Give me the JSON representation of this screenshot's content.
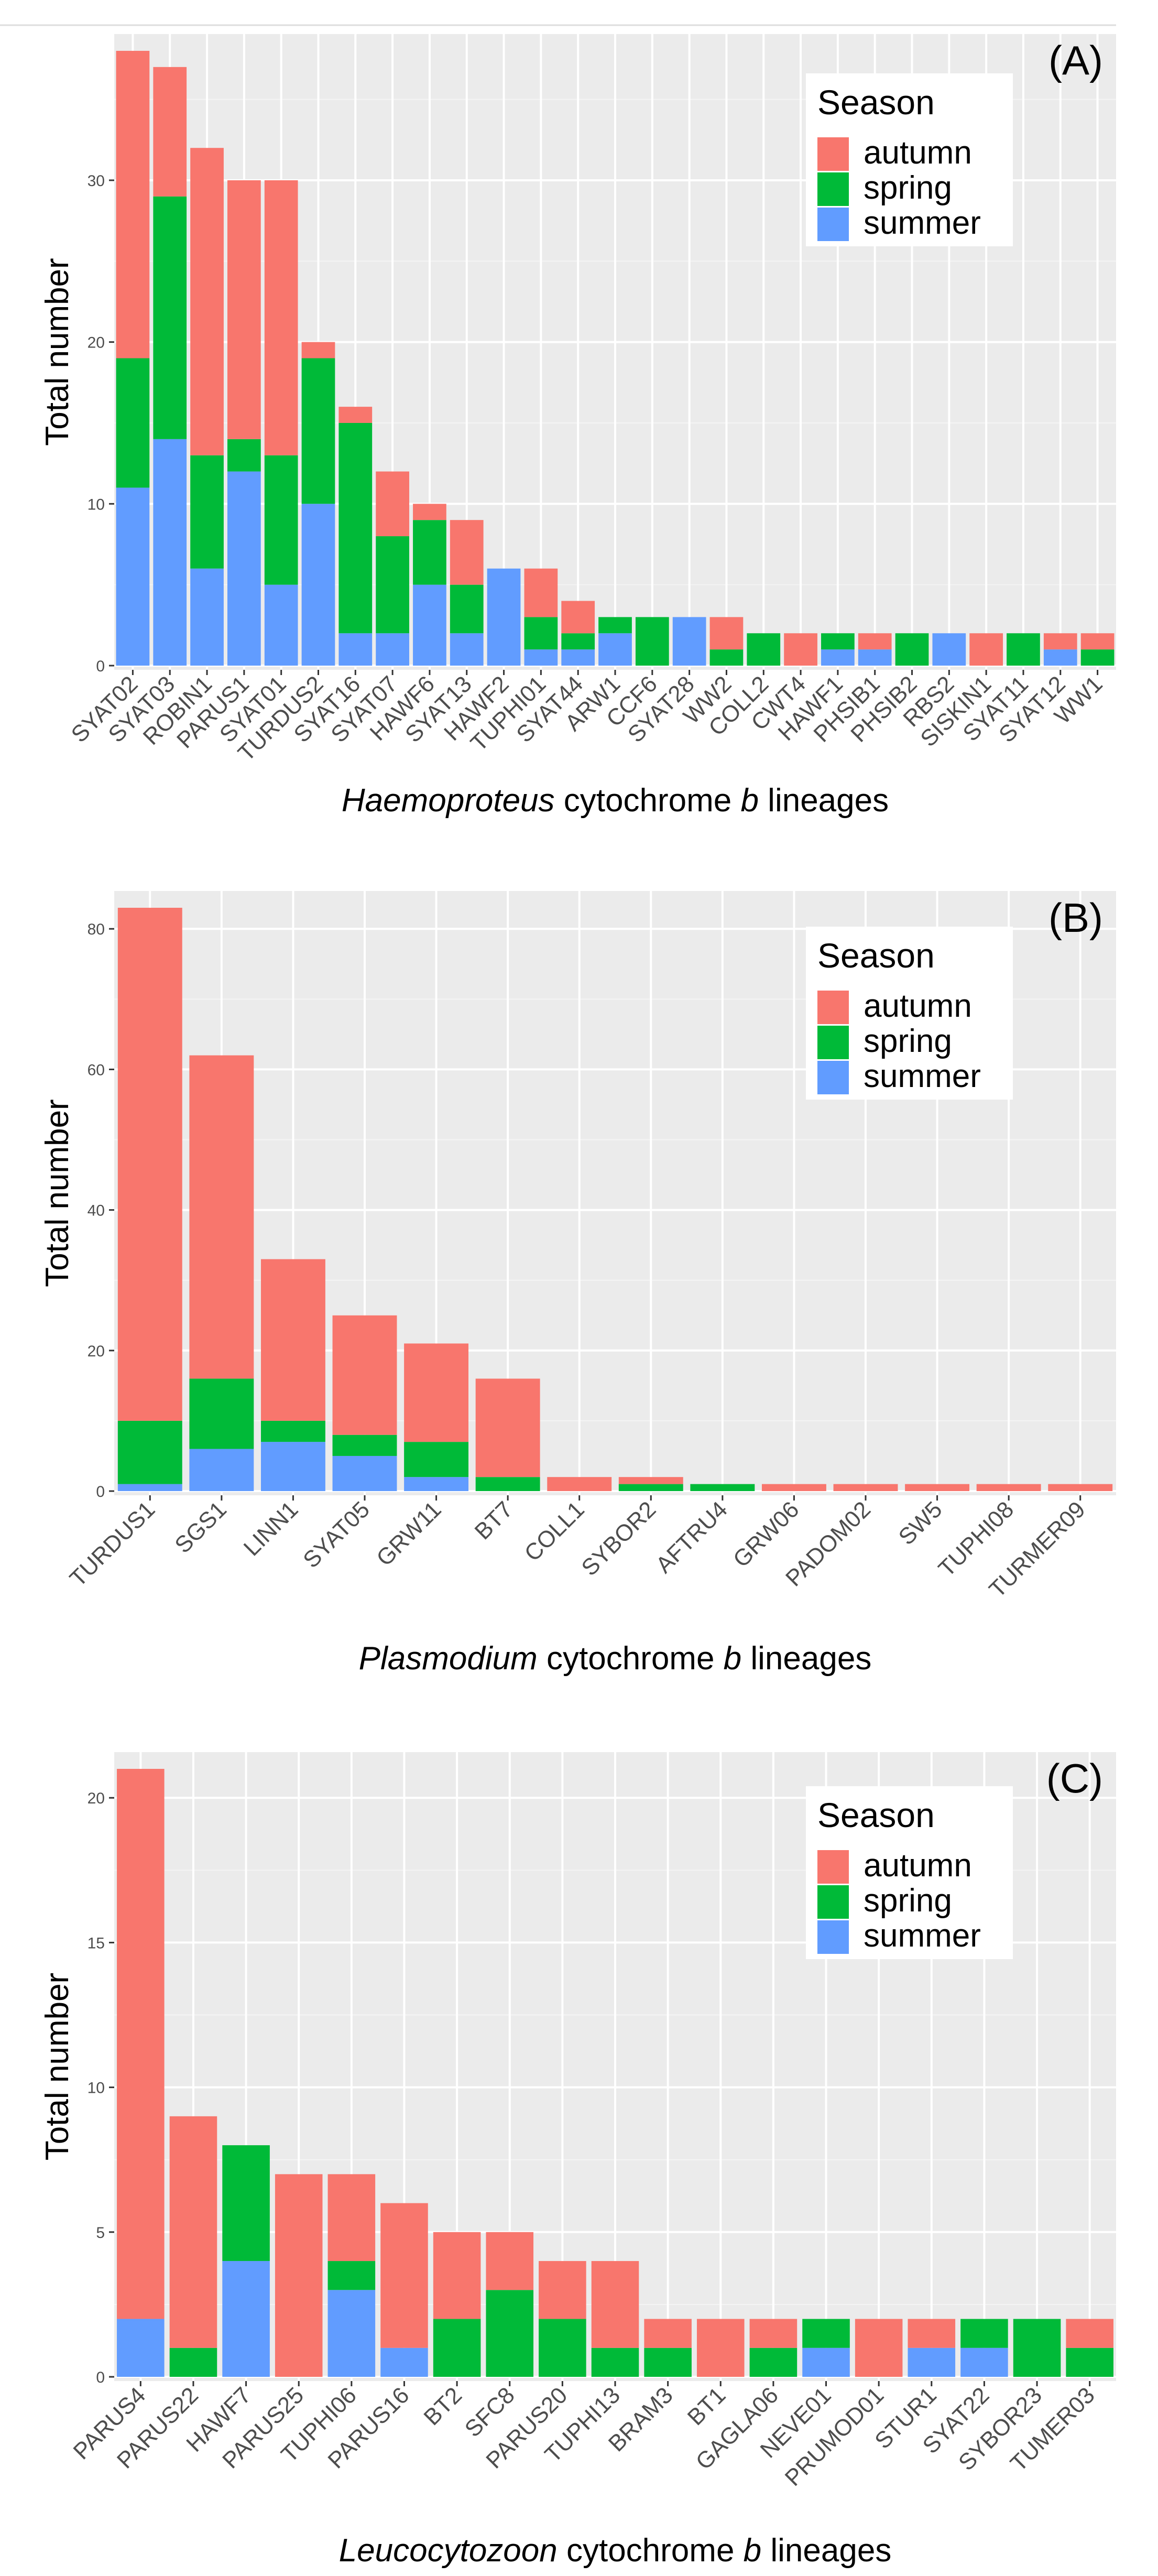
{
  "colors": {
    "panel_bg": "#ebebeb",
    "grid_major": "#ffffff",
    "grid_minor": "#f4f4f4",
    "tick_text": "#4d4d4d",
    "axis_title": "#000000",
    "top_rule": "#dddddd"
  },
  "legend": {
    "title": "Season",
    "items": [
      {
        "label": "autumn",
        "color": "#f8766d"
      },
      {
        "label": "spring",
        "color": "#00ba38"
      },
      {
        "label": "summer",
        "color": "#619cff"
      }
    ]
  },
  "chart_data": [
    {
      "type": "bar",
      "stacked": true,
      "panel_label": "(A)",
      "ylabel": "Total number",
      "xlabel_italic": "Haemoproteus",
      "xlabel_rest": " cytochrome ",
      "xlabel_b": "b",
      "xlabel_end": " lineages",
      "ylim": [
        0,
        38
      ],
      "y_ticks": [
        0,
        10,
        20,
        30
      ],
      "categories": [
        "SYAT02",
        "SYAT03",
        "ROBIN1",
        "PARUS1",
        "SYAT01",
        "TURDUS2",
        "SYAT16",
        "SYAT07",
        "HAWF6",
        "SYAT13",
        "HAWF2",
        "TUPHI01",
        "SYAT44",
        "ARW1",
        "CCF6",
        "SYAT28",
        "WW2",
        "COLL2",
        "CWT4",
        "HAWF1",
        "PHSIB1",
        "PHSIB2",
        "RBS2",
        "SISKIN1",
        "SYAT11",
        "SYAT12",
        "WW1"
      ],
      "series": [
        {
          "name": "summer",
          "values": [
            11,
            14,
            6,
            12,
            5,
            10,
            2,
            2,
            5,
            2,
            6,
            1,
            1,
            2,
            0,
            3,
            0,
            0,
            0,
            1,
            1,
            0,
            2,
            0,
            0,
            1,
            0
          ]
        },
        {
          "name": "spring",
          "values": [
            8,
            15,
            7,
            2,
            8,
            9,
            13,
            6,
            4,
            3,
            0,
            2,
            1,
            1,
            3,
            0,
            1,
            2,
            0,
            1,
            0,
            2,
            0,
            0,
            2,
            0,
            1
          ]
        },
        {
          "name": "autumn",
          "values": [
            19,
            8,
            19,
            16,
            17,
            1,
            1,
            4,
            1,
            4,
            0,
            3,
            2,
            0,
            0,
            0,
            2,
            0,
            2,
            0,
            1,
            0,
            0,
            2,
            0,
            1,
            1
          ]
        }
      ]
    },
    {
      "type": "bar",
      "stacked": true,
      "panel_label": "(B)",
      "ylabel": "Total number",
      "xlabel_italic": "Plasmodium",
      "xlabel_rest": " cytochrome ",
      "xlabel_b": "b",
      "xlabel_end": " lineages",
      "ylim": [
        0,
        83
      ],
      "y_ticks": [
        0,
        20,
        40,
        60,
        80
      ],
      "categories": [
        "TURDUS1",
        "SGS1",
        "LINN1",
        "SYAT05",
        "GRW11",
        "BT7",
        "COLL1",
        "SYBOR2",
        "AFTRU4",
        "GRW06",
        "PADOM02",
        "SW5",
        "TUPHI08",
        "TURMER09"
      ],
      "series": [
        {
          "name": "summer",
          "values": [
            1,
            6,
            7,
            5,
            2,
            0,
            0,
            0,
            0,
            0,
            0,
            0,
            0,
            0
          ]
        },
        {
          "name": "spring",
          "values": [
            9,
            10,
            3,
            3,
            5,
            2,
            0,
            1,
            1,
            0,
            0,
            0,
            0,
            0
          ]
        },
        {
          "name": "autumn",
          "values": [
            73,
            46,
            23,
            17,
            14,
            14,
            2,
            1,
            0,
            1,
            1,
            1,
            1,
            1
          ]
        }
      ]
    },
    {
      "type": "bar",
      "stacked": true,
      "panel_label": "(C)",
      "ylabel": "Total number",
      "xlabel_italic": "Leucocytozoon",
      "xlabel_rest": " cytochrome ",
      "xlabel_b": "b",
      "xlabel_end": " lineages",
      "ylim": [
        0,
        21
      ],
      "y_ticks": [
        0,
        5,
        10,
        15,
        20
      ],
      "categories": [
        "PARUS4",
        "PARUS22",
        "HAWF7",
        "PARUS25",
        "TUPHI06",
        "PARUS16",
        "BT2",
        "SFC8",
        "PARUS20",
        "TUPHI13",
        "BRAM3",
        "BT1",
        "GAGLA06",
        "NEVE01",
        "PRUMOD01",
        "STUR1",
        "SYAT22",
        "SYBOR23",
        "TUMER03"
      ],
      "series": [
        {
          "name": "summer",
          "values": [
            2,
            0,
            4,
            0,
            3,
            1,
            0,
            0,
            0,
            0,
            0,
            0,
            0,
            1,
            0,
            1,
            1,
            0,
            0
          ]
        },
        {
          "name": "spring",
          "values": [
            0,
            1,
            4,
            0,
            1,
            0,
            2,
            3,
            2,
            1,
            1,
            0,
            1,
            1,
            0,
            0,
            1,
            2,
            1
          ]
        },
        {
          "name": "autumn",
          "values": [
            19,
            8,
            0,
            7,
            3,
            5,
            3,
            2,
            2,
            3,
            1,
            2,
            1,
            0,
            2,
            1,
            0,
            0,
            1
          ]
        }
      ]
    }
  ]
}
